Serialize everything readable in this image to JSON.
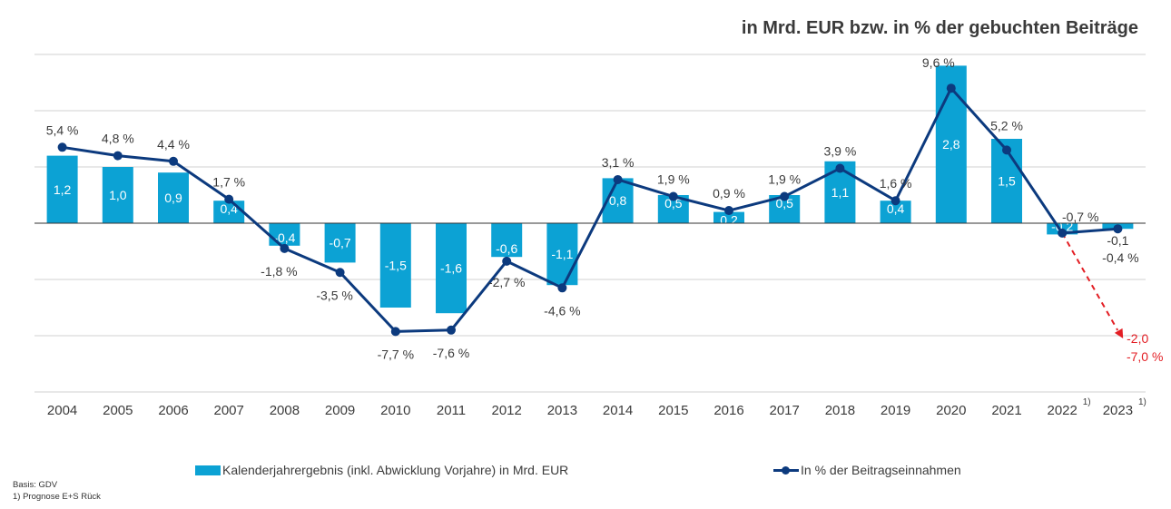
{
  "chart_data": {
    "type": "bar",
    "title": "in Mrd. EUR bzw. in % der gebuchten Beiträge",
    "xlabel": "",
    "ylabel": "",
    "categories": [
      "2004",
      "2005",
      "2006",
      "2007",
      "2008",
      "2009",
      "2010",
      "2011",
      "2012",
      "2013",
      "2014",
      "2015",
      "2016",
      "2017",
      "2018",
      "2019",
      "2020",
      "2021",
      "2022",
      "2023"
    ],
    "category_footnotes": {
      "2022": "1)",
      "2023": "1)"
    },
    "series": [
      {
        "name": "Kalenderjahrergebnis (inkl. Abwicklung Vorjahre) in Mrd. EUR",
        "type": "bar",
        "axis": "left",
        "color": "#0ca2d4",
        "values": [
          1.2,
          1.0,
          0.9,
          0.4,
          -0.4,
          -0.7,
          -1.5,
          -1.6,
          -0.6,
          -1.1,
          0.8,
          0.5,
          0.2,
          0.5,
          1.1,
          0.4,
          2.8,
          1.5,
          -0.2,
          -0.1
        ],
        "labels": [
          "1,2",
          "1,0",
          "0,9",
          "0,4",
          "-0,4",
          "-0,7",
          "-1,5",
          "-1,6",
          "-0,6",
          "-1,1",
          "0,8",
          "0,5",
          "0,2",
          "0,5",
          "1,1",
          "0,4",
          "2,8",
          "1,5",
          "-0,2",
          "-0,1"
        ]
      },
      {
        "name": "In % der Beitragseinnahmen",
        "type": "line",
        "axis": "right",
        "color": "#0c3a7e",
        "values": [
          5.4,
          4.8,
          4.4,
          1.7,
          -1.8,
          -3.5,
          -7.7,
          -7.6,
          -2.7,
          -4.6,
          3.1,
          1.9,
          0.9,
          1.9,
          3.9,
          1.6,
          9.6,
          5.2,
          -0.7,
          -0.4
        ],
        "labels": [
          "5,4 %",
          "4,8 %",
          "4,4 %",
          "1,7 %",
          "-1,8 %",
          "-3,5 %",
          "-7,7 %",
          "-7,6 %",
          "-2,7 %",
          "-4,6 %",
          "3,1 %",
          "1,9 %",
          "0,9 %",
          "1,9 %",
          "3,9 %",
          "1,6 %",
          "9,6 %",
          "5,2 %",
          "-0,7 %",
          "-0,4 %"
        ]
      }
    ],
    "forecast": {
      "color": "#e31e24",
      "from_category": "2022",
      "to_category": "2023",
      "bar_value": -2.0,
      "percent_value": -7.0,
      "bar_label": "-2,0",
      "percent_label": "-7,0 %",
      "style": "dashed-arrow"
    },
    "ylim_left": [
      -3,
      3
    ],
    "ylim_right": [
      -12,
      12
    ],
    "grid": true,
    "legend_position": "bottom"
  },
  "legend": {
    "bar_label": "Kalenderjahrergebnis (inkl. Abwicklung Vorjahre) in Mrd. EUR",
    "line_label": "In % der Beitragseinnahmen"
  },
  "footnotes": {
    "source": "Basis: GDV",
    "note": "1) Prognose  E+S Rück"
  }
}
